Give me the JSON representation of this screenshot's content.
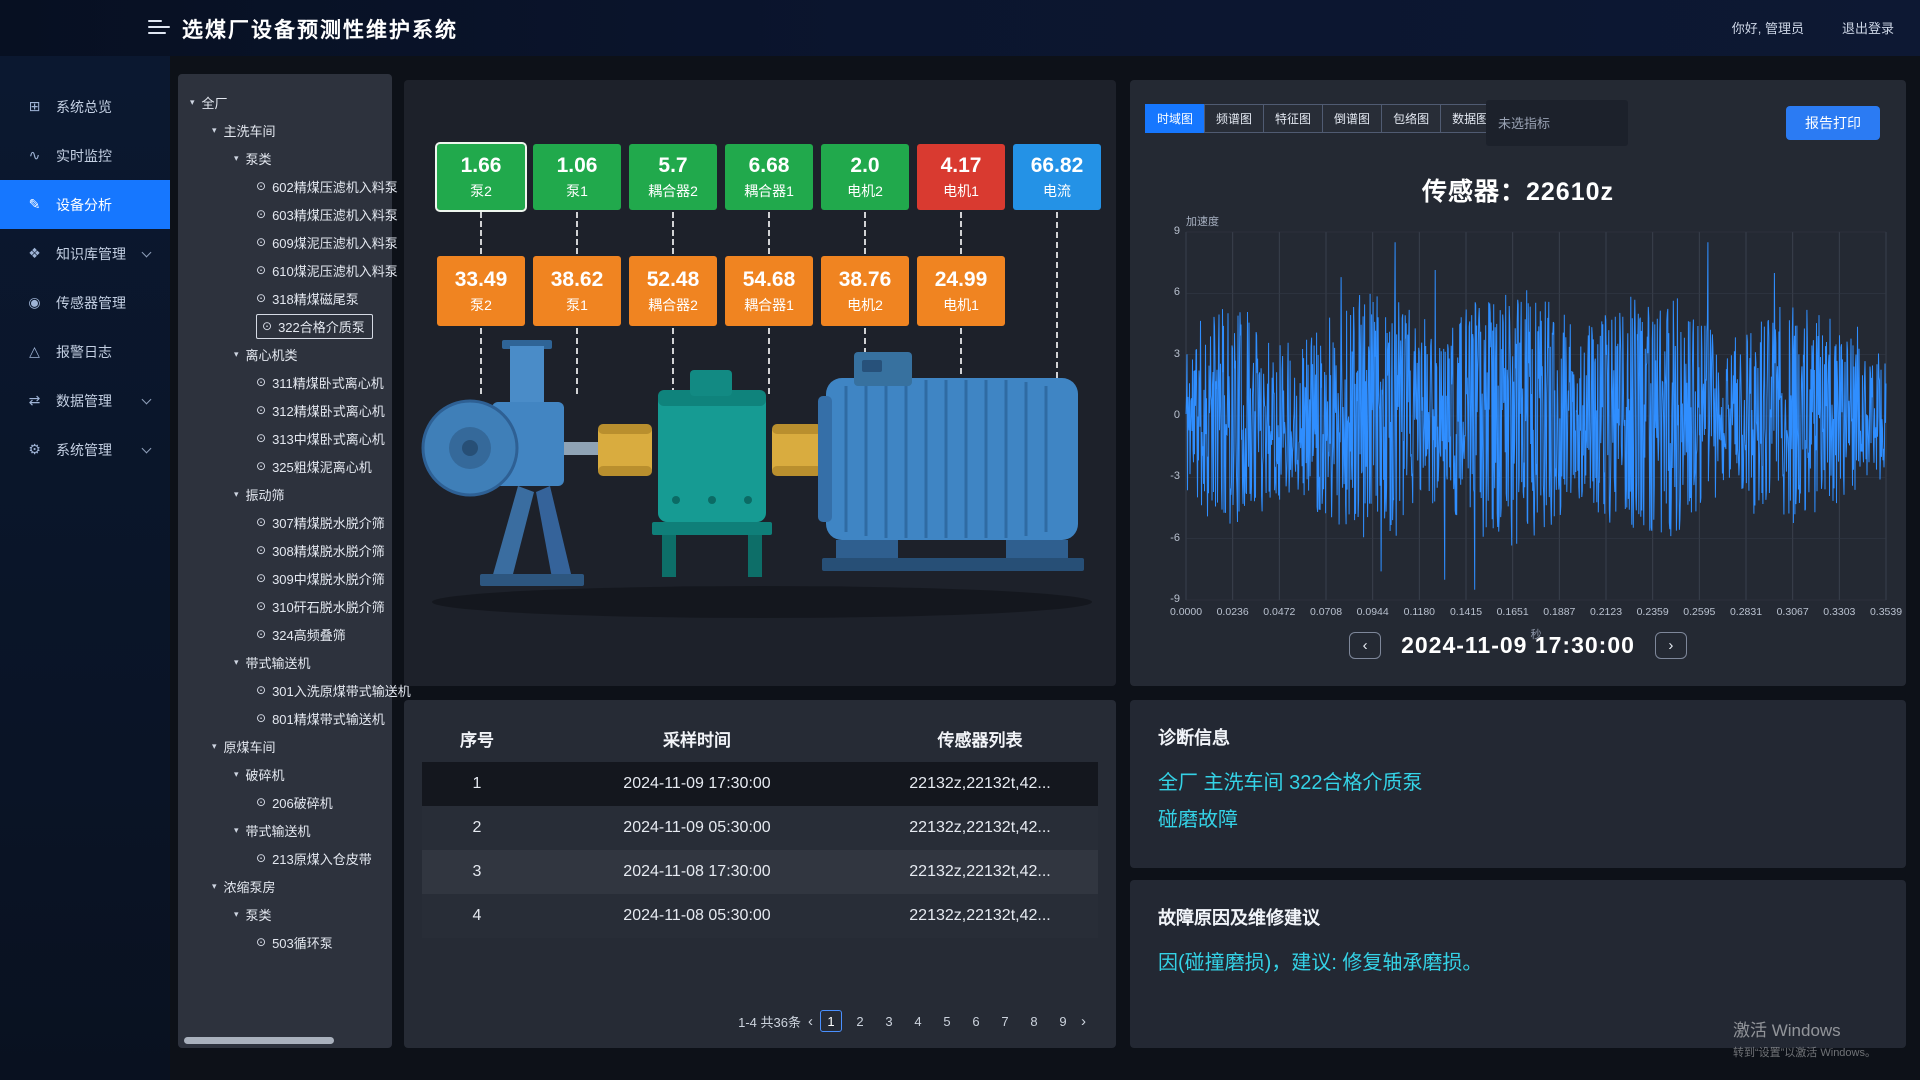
{
  "header": {
    "title": "选煤厂设备预测性维护系统",
    "greeting": "你好, 管理员",
    "logout": "退出登录"
  },
  "sidebar": {
    "items": [
      {
        "label": "系统总览",
        "icon": "overview-chart-icon",
        "glyph": "⊞",
        "active": false,
        "expandable": false
      },
      {
        "label": "实时监控",
        "icon": "realtime-monitor-icon",
        "glyph": "∿",
        "active": false,
        "expandable": false
      },
      {
        "label": "设备分析",
        "icon": "device-analysis-icon",
        "glyph": "✎",
        "active": true,
        "expandable": false
      },
      {
        "label": "知识库管理",
        "icon": "knowledge-base-icon",
        "glyph": "❖",
        "active": false,
        "expandable": true
      },
      {
        "label": "传感器管理",
        "icon": "sensor-manage-icon",
        "glyph": "◉",
        "active": false,
        "expandable": false
      },
      {
        "label": "报警日志",
        "icon": "alarm-log-icon",
        "glyph": "△",
        "active": false,
        "expandable": false
      },
      {
        "label": "数据管理",
        "icon": "data-manage-icon",
        "glyph": "⇄",
        "active": false,
        "expandable": true
      },
      {
        "label": "系统管理",
        "icon": "system-manage-icon",
        "glyph": "⚙",
        "active": false,
        "expandable": true
      }
    ]
  },
  "tree": {
    "nodes": [
      {
        "label": "全厂",
        "level": 0,
        "type": "branch",
        "selected": false
      },
      {
        "label": "主洗车间",
        "level": 1,
        "type": "branch",
        "selected": false
      },
      {
        "label": "泵类",
        "level": 2,
        "type": "branch",
        "selected": false
      },
      {
        "label": "602精煤压滤机入料泵",
        "level": 3,
        "type": "leaf",
        "selected": false
      },
      {
        "label": "603精煤压滤机入料泵",
        "level": 3,
        "type": "leaf",
        "selected": false
      },
      {
        "label": "609煤泥压滤机入料泵",
        "level": 3,
        "type": "leaf",
        "selected": false
      },
      {
        "label": "610煤泥压滤机入料泵",
        "level": 3,
        "type": "leaf",
        "selected": false
      },
      {
        "label": "318精煤磁尾泵",
        "level": 3,
        "type": "leaf",
        "selected": false
      },
      {
        "label": "322合格介质泵",
        "level": 3,
        "type": "leaf",
        "selected": true
      },
      {
        "label": "离心机类",
        "level": 2,
        "type": "branch",
        "selected": false
      },
      {
        "label": "311精煤卧式离心机",
        "level": 3,
        "type": "leaf",
        "selected": false
      },
      {
        "label": "312精煤卧式离心机",
        "level": 3,
        "type": "leaf",
        "selected": false
      },
      {
        "label": "313中煤卧式离心机",
        "level": 3,
        "type": "leaf",
        "selected": false
      },
      {
        "label": "325粗煤泥离心机",
        "level": 3,
        "type": "leaf",
        "selected": false
      },
      {
        "label": "振动筛",
        "level": 2,
        "type": "branch",
        "selected": false
      },
      {
        "label": "307精煤脱水脱介筛",
        "level": 3,
        "type": "leaf",
        "selected": false
      },
      {
        "label": "308精煤脱水脱介筛",
        "level": 3,
        "type": "leaf",
        "selected": false
      },
      {
        "label": "309中煤脱水脱介筛",
        "level": 3,
        "type": "leaf",
        "selected": false
      },
      {
        "label": "310矸石脱水脱介筛",
        "level": 3,
        "type": "leaf",
        "selected": false
      },
      {
        "label": "324高频叠筛",
        "level": 3,
        "type": "leaf",
        "selected": false
      },
      {
        "label": "带式输送机",
        "level": 2,
        "type": "branch",
        "selected": false
      },
      {
        "label": "301入洗原煤带式输送机",
        "level": 3,
        "type": "leaf",
        "selected": false
      },
      {
        "label": "801精煤带式输送机",
        "level": 3,
        "type": "leaf",
        "selected": false
      },
      {
        "label": "原煤车间",
        "level": 1,
        "type": "branch",
        "selected": false
      },
      {
        "label": "破碎机",
        "level": 2,
        "type": "branch",
        "selected": false
      },
      {
        "label": "206破碎机",
        "level": 3,
        "type": "leaf",
        "selected": false
      },
      {
        "label": "带式输送机",
        "level": 2,
        "type": "branch",
        "selected": false
      },
      {
        "label": "213原煤入仓皮带",
        "level": 3,
        "type": "leaf",
        "selected": false
      },
      {
        "label": "浓缩泵房",
        "level": 1,
        "type": "branch",
        "selected": false
      },
      {
        "label": "泵类",
        "level": 2,
        "type": "branch",
        "selected": false
      },
      {
        "label": "503循环泵",
        "level": 3,
        "type": "leaf",
        "selected": false
      }
    ]
  },
  "equipment": {
    "top_badges": [
      {
        "value": "1.66",
        "label": "泵2",
        "color": "green",
        "selected": true
      },
      {
        "value": "1.06",
        "label": "泵1",
        "color": "green",
        "selected": false
      },
      {
        "value": "5.7",
        "label": "耦合器2",
        "color": "green",
        "selected": false
      },
      {
        "value": "6.68",
        "label": "耦合器1",
        "color": "green",
        "selected": false
      },
      {
        "value": "2.0",
        "label": "电机2",
        "color": "green",
        "selected": false
      },
      {
        "value": "4.17",
        "label": "电机1",
        "color": "red",
        "selected": false
      },
      {
        "value": "66.82",
        "label": "电流",
        "color": "blue",
        "selected": false
      }
    ],
    "bottom_badges": [
      {
        "value": "33.49",
        "label": "泵2"
      },
      {
        "value": "38.62",
        "label": "泵1"
      },
      {
        "value": "52.48",
        "label": "耦合器2"
      },
      {
        "value": "54.68",
        "label": "耦合器1"
      },
      {
        "value": "38.76",
        "label": "电机2"
      },
      {
        "value": "24.99",
        "label": "电机1"
      }
    ]
  },
  "table": {
    "headers": [
      "序号",
      "采样时间",
      "传感器列表"
    ],
    "rows": [
      [
        "1",
        "2024-11-09 17:30:00",
        "22132z,22132t,42..."
      ],
      [
        "2",
        "2024-11-09 05:30:00",
        "22132z,22132t,42..."
      ],
      [
        "3",
        "2024-11-08 17:30:00",
        "22132z,22132t,42..."
      ],
      [
        "4",
        "2024-11-08 05:30:00",
        "22132z,22132t,42..."
      ]
    ],
    "pagination": {
      "summary": "1-4 共36条",
      "prev": "‹",
      "pages": [
        "1",
        "2",
        "3",
        "4",
        "5",
        "6",
        "7",
        "8",
        "9"
      ],
      "current": "1",
      "next": "›"
    }
  },
  "analysis": {
    "tabs": [
      "时域图",
      "频谱图",
      "特征图",
      "倒谱图",
      "包络图",
      "数据图"
    ],
    "active_tab": "时域图",
    "indicator_placeholder": "未选指标",
    "print_button": "报告打印",
    "sensor_title": "传感器：22610z",
    "date_nav": {
      "prev": "‹",
      "date": "2024-11-09 17:30:00",
      "next": "›"
    }
  },
  "chart_data": {
    "type": "line",
    "title": "传感器：22610z",
    "ylabel": "加速度",
    "xlabel": "秒",
    "ylim": [
      -9,
      9
    ],
    "yticks": [
      9,
      6,
      3,
      0,
      -3,
      -6,
      -9
    ],
    "xticks": [
      "0.0000",
      "0.0236",
      "0.0472",
      "0.0708",
      "0.0944",
      "0.1180",
      "0.1415",
      "0.1651",
      "0.1887",
      "0.2123",
      "0.2359",
      "0.2595",
      "0.2831",
      "0.3067",
      "0.3303",
      "0.3539"
    ],
    "grid": "vertical",
    "legend_position": "none",
    "series": [
      {
        "name": "加速度",
        "color": "#2f8eff",
        "waveform": "dense-vibration-noise",
        "approx_rms": 2.2,
        "approx_peak": 7.5,
        "n_points": 1400,
        "seed": 11
      }
    ]
  },
  "diagnosis": {
    "title": "诊断信息",
    "lines": [
      "全厂 主洗车间 322合格介质泵",
      "碰磨故障"
    ]
  },
  "fault": {
    "title": "故障原因及维修建议",
    "text": "因(碰撞磨损)，建议: 修复轴承磨损。"
  },
  "watermark": {
    "line1": "激活 Windows",
    "line2": "转到“设置”以激活 Windows。"
  }
}
